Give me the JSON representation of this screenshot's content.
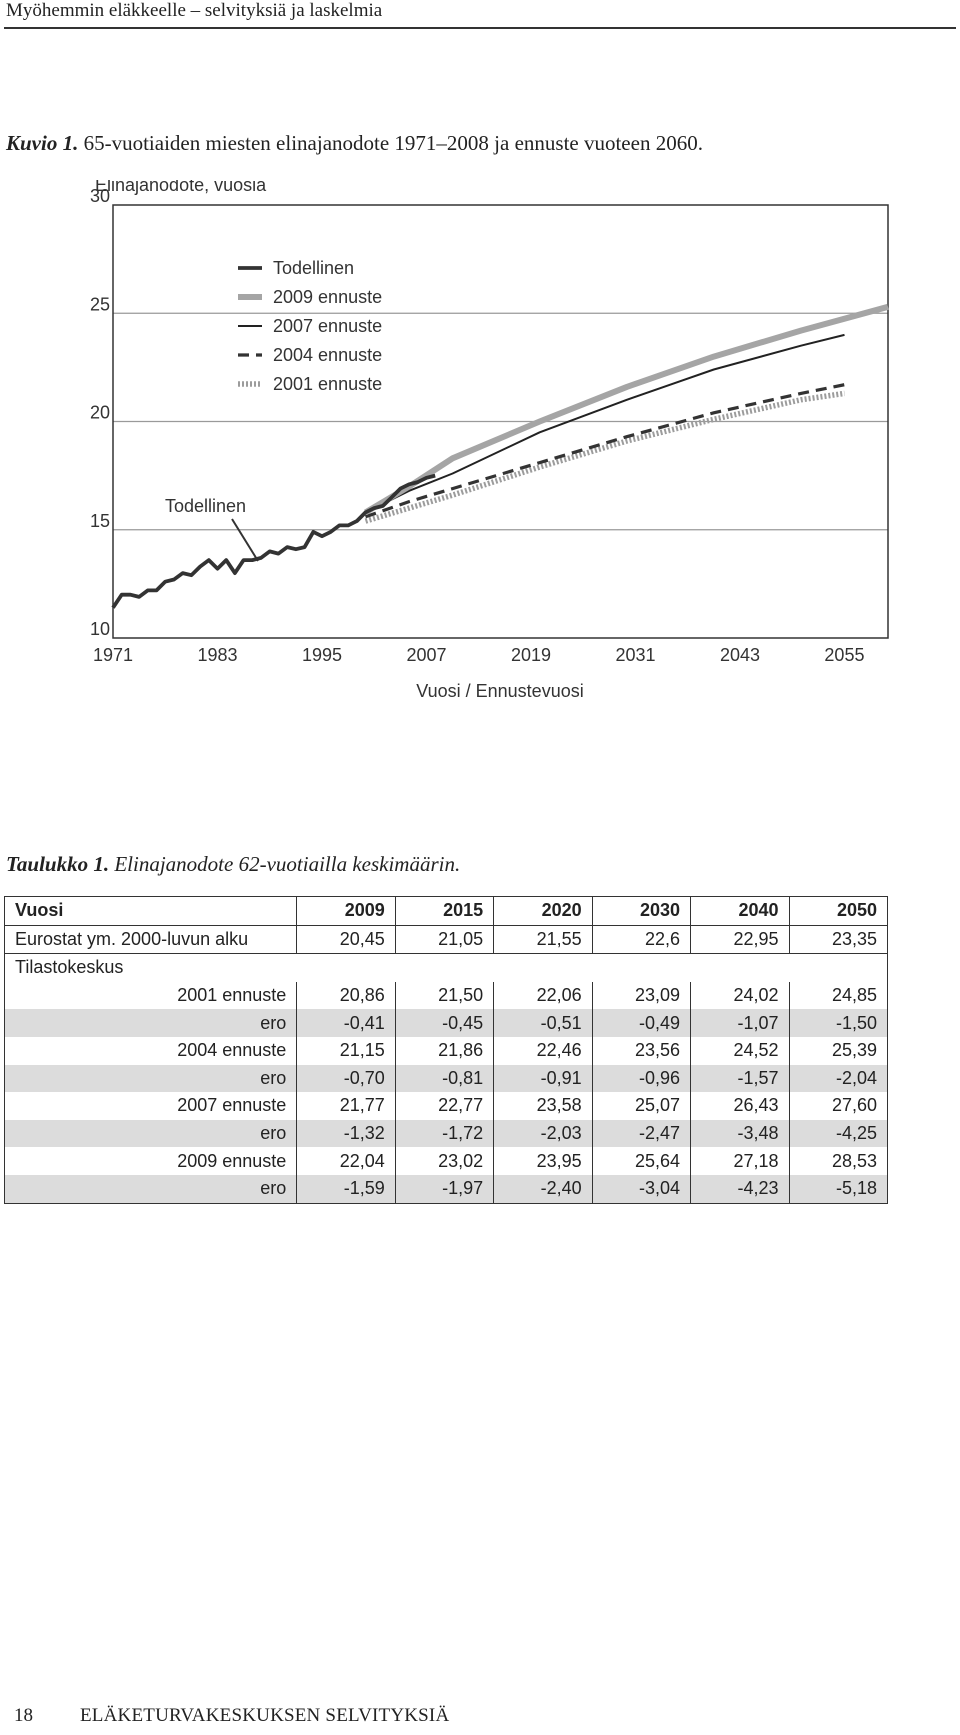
{
  "header": {
    "text": "Myöhemmin eläkkeelle – selvityksiä ja laskelmia"
  },
  "figure": {
    "label": "Kuvio 1.",
    "text": " 65-vuotiaiden miesten elinajanodote 1971–2008 ja ennuste vuoteen 2060."
  },
  "chart_data": {
    "type": "line",
    "ylabel": "Elinajanodote, vuosia",
    "xlabel": "Vuosi / Ennustevuosi",
    "xlim": [
      1971,
      2060
    ],
    "ylim": [
      10,
      30
    ],
    "xticks": [
      "1971",
      "1983",
      "1995",
      "2007",
      "2019",
      "2031",
      "2043",
      "2055"
    ],
    "yticks": [
      "10",
      "15",
      "20",
      "25",
      "30"
    ],
    "grid": "horizontal",
    "legend": "top-left",
    "annotation": "Todellinen",
    "colors": {
      "actual": "#333333",
      "forecast2009": "#a5a5a5",
      "forecast2007": "#222222",
      "forecast2004": "#333333",
      "forecast2001": "#9c9c9c"
    },
    "series": [
      {
        "name": "Todellinen",
        "x": [
          1971,
          1972,
          1973,
          1974,
          1975,
          1976,
          1977,
          1978,
          1979,
          1980,
          1981,
          1982,
          1983,
          1984,
          1985,
          1986,
          1987,
          1988,
          1989,
          1990,
          1991,
          1992,
          1993,
          1994,
          1995,
          1996,
          1997,
          1998,
          1999,
          2000,
          2001,
          2002,
          2003,
          2004,
          2005,
          2006,
          2007,
          2008
        ],
        "y": [
          11.4,
          12.0,
          12.0,
          11.9,
          12.2,
          12.2,
          12.6,
          12.7,
          13.0,
          12.9,
          13.3,
          13.6,
          13.2,
          13.6,
          13.0,
          13.6,
          13.6,
          13.7,
          14.0,
          13.9,
          14.2,
          14.1,
          14.2,
          14.9,
          14.7,
          14.9,
          15.2,
          15.2,
          15.4,
          15.8,
          16.0,
          16.1,
          16.5,
          16.9,
          17.1,
          17.2,
          17.4,
          17.5
        ]
      },
      {
        "name": "2009 ennuste",
        "x": [
          2000,
          2005,
          2010,
          2020,
          2030,
          2040,
          2050,
          2060
        ],
        "y": [
          15.8,
          17.0,
          18.3,
          20.0,
          21.6,
          23.0,
          24.2,
          25.3
        ]
      },
      {
        "name": "2007 ennuste",
        "x": [
          2000,
          2005,
          2010,
          2020,
          2030,
          2040,
          2050,
          2055
        ],
        "y": [
          15.8,
          16.8,
          17.6,
          19.5,
          21.0,
          22.4,
          23.5,
          24.0
        ]
      },
      {
        "name": "2004 ennuste",
        "x": [
          2000,
          2005,
          2010,
          2020,
          2030,
          2040,
          2050,
          2055
        ],
        "y": [
          15.6,
          16.3,
          16.9,
          18.1,
          19.3,
          20.4,
          21.3,
          21.7
        ]
      },
      {
        "name": "2001 ennuste",
        "x": [
          2000,
          2005,
          2010,
          2020,
          2030,
          2040,
          2050,
          2055
        ],
        "y": [
          15.4,
          16.0,
          16.6,
          17.9,
          19.1,
          20.1,
          21.0,
          21.3
        ]
      }
    ]
  },
  "table": {
    "caption_label": "Taulukko 1.",
    "caption_text": " Elinajanodote 62-vuotiailla keskimäärin.",
    "header": [
      "Vuosi",
      "2009",
      "2015",
      "2020",
      "2030",
      "2040",
      "2050"
    ],
    "eurostat": {
      "label": "Eurostat ym. 2000-luvun alku",
      "values": [
        "20,45",
        "21,05",
        "21,55",
        "22,6",
        "22,95",
        "23,35"
      ]
    },
    "group_label": "Tilastokeskus",
    "rows": [
      {
        "label": "2001 ennuste",
        "values": [
          "20,86",
          "21,50",
          "22,06",
          "23,09",
          "24,02",
          "24,85"
        ],
        "shade": false
      },
      {
        "label": "ero",
        "values": [
          "-0,41",
          "-0,45",
          "-0,51",
          "-0,49",
          "-1,07",
          "-1,50"
        ],
        "shade": true
      },
      {
        "label": "2004 ennuste",
        "values": [
          "21,15",
          "21,86",
          "22,46",
          "23,56",
          "24,52",
          "25,39"
        ],
        "shade": false
      },
      {
        "label": "ero",
        "values": [
          "-0,70",
          "-0,81",
          "-0,91",
          "-0,96",
          "-1,57",
          "-2,04"
        ],
        "shade": true
      },
      {
        "label": "2007 ennuste",
        "values": [
          "21,77",
          "22,77",
          "23,58",
          "25,07",
          "26,43",
          "27,60"
        ],
        "shade": false
      },
      {
        "label": "ero",
        "values": [
          "-1,32",
          "-1,72",
          "-2,03",
          "-2,47",
          "-3,48",
          "-4,25"
        ],
        "shade": true
      },
      {
        "label": "2009 ennuste",
        "values": [
          "22,04",
          "23,02",
          "23,95",
          "25,64",
          "27,18",
          "28,53"
        ],
        "shade": false
      },
      {
        "label": "ero",
        "values": [
          "-1,59",
          "-1,97",
          "-2,40",
          "-3,04",
          "-4,23",
          "-5,18"
        ],
        "shade": true
      }
    ]
  },
  "footer": {
    "page_number": "18",
    "publication": "ELÄKETURVAKESKUKSEN SELVITYKSIÄ"
  }
}
